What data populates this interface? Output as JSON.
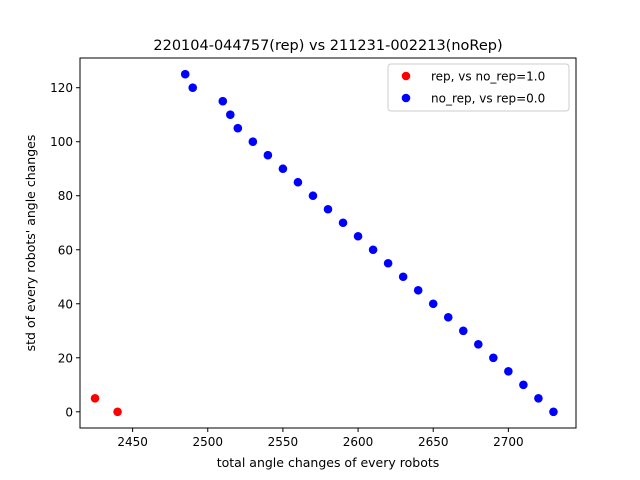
{
  "chart_data": {
    "type": "scatter",
    "title": "220104-044757(rep) vs 211231-002213(noRep)",
    "xlabel": "total angle changes of every robots",
    "ylabel": "std of every robots' angle changes",
    "xlim": [
      2415,
      2745
    ],
    "ylim": [
      -6,
      131
    ],
    "xticks": [
      2450,
      2500,
      2550,
      2600,
      2650,
      2700
    ],
    "yticks": [
      0,
      20,
      40,
      60,
      80,
      100,
      120
    ],
    "grid": false,
    "legend_position": "top-right",
    "series": [
      {
        "name": "rep, vs no_rep=1.0",
        "color": "#ff0000",
        "points": [
          [
            2425,
            5
          ],
          [
            2440,
            0
          ]
        ]
      },
      {
        "name": "no_rep, vs rep=0.0",
        "color": "#0000ff",
        "points": [
          [
            2485,
            125
          ],
          [
            2490,
            120
          ],
          [
            2510,
            115
          ],
          [
            2515,
            110
          ],
          [
            2520,
            105
          ],
          [
            2530,
            100
          ],
          [
            2540,
            95
          ],
          [
            2550,
            90
          ],
          [
            2560,
            85
          ],
          [
            2570,
            80
          ],
          [
            2580,
            75
          ],
          [
            2590,
            70
          ],
          [
            2600,
            65
          ],
          [
            2610,
            60
          ],
          [
            2620,
            55
          ],
          [
            2630,
            50
          ],
          [
            2640,
            45
          ],
          [
            2650,
            40
          ],
          [
            2660,
            35
          ],
          [
            2670,
            30
          ],
          [
            2680,
            25
          ],
          [
            2690,
            20
          ],
          [
            2700,
            15
          ],
          [
            2710,
            10
          ],
          [
            2720,
            5
          ],
          [
            2730,
            0
          ]
        ]
      }
    ]
  }
}
